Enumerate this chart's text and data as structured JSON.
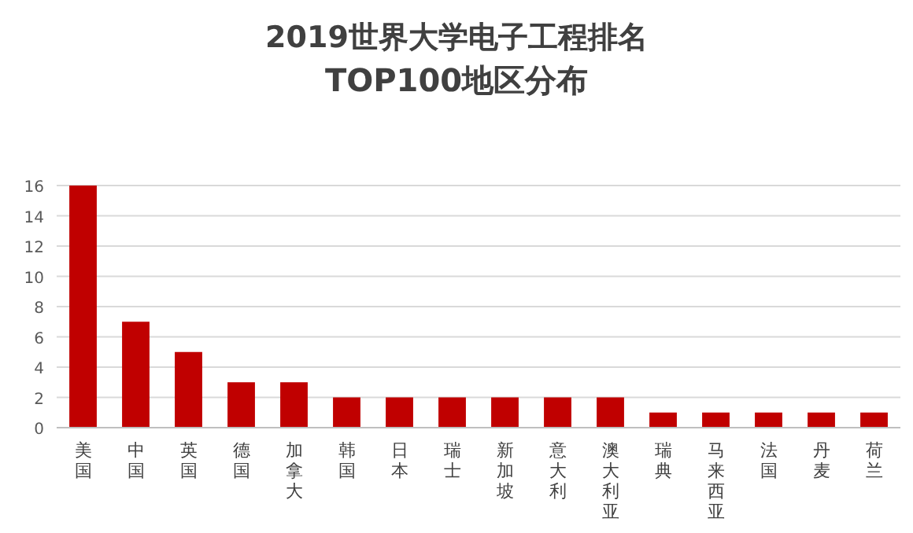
{
  "chart_data": {
    "type": "bar",
    "title": "2019世界大学电子工程排名",
    "subtitle": "TOP100地区分布",
    "categories": [
      "美国",
      "中国",
      "英国",
      "德国",
      "加拿大",
      "韩国",
      "日本",
      "瑞士",
      "新加坡",
      "意大利",
      "澳大利亚",
      "瑞典",
      "马来西亚",
      "法国",
      "丹麦",
      "荷兰"
    ],
    "values": [
      16,
      7,
      5,
      3,
      3,
      2,
      2,
      2,
      2,
      2,
      2,
      1,
      1,
      1,
      1,
      1
    ],
    "color": "#c00000",
    "ylim": [
      0,
      16
    ],
    "yticks": [
      0,
      2,
      4,
      6,
      8,
      10,
      12,
      14,
      16
    ],
    "grid": "y"
  }
}
